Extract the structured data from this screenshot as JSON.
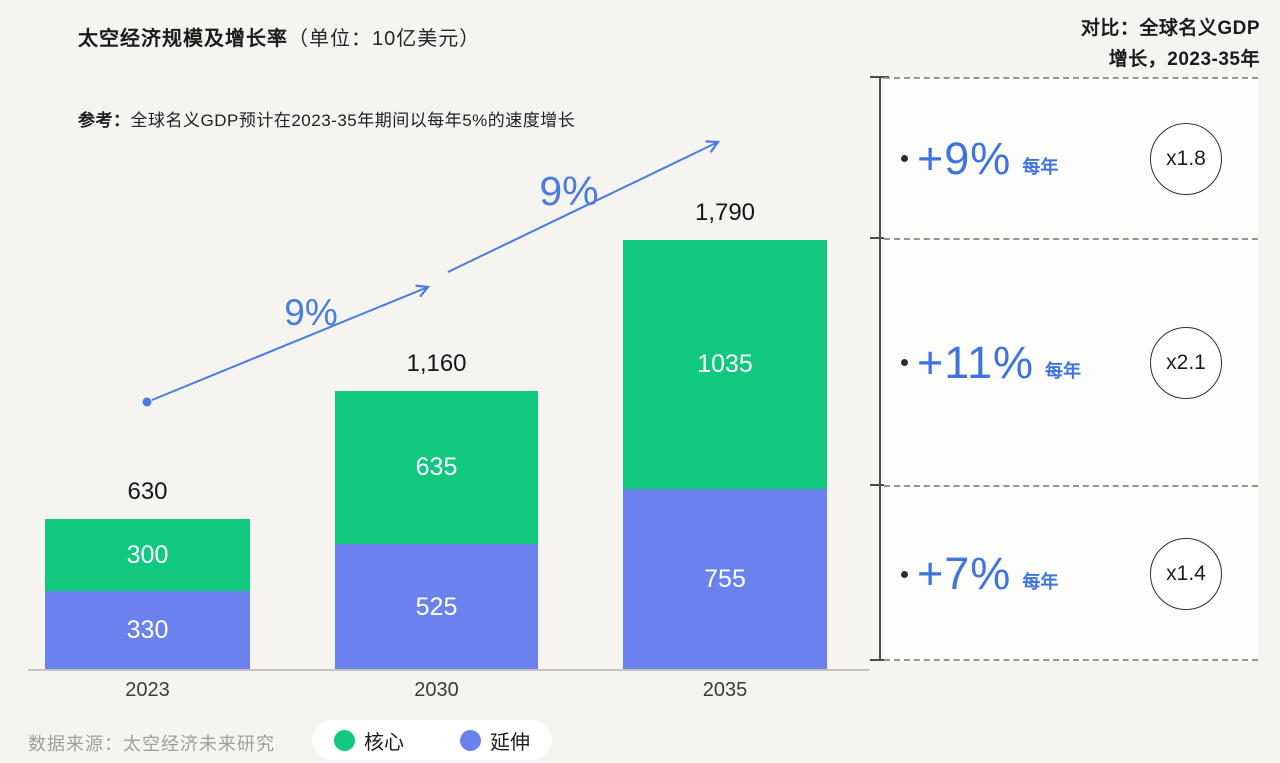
{
  "colors": {
    "background": "#f5f4f0",
    "accent_blue": "#4a7ce0",
    "core_green": "#10c97e",
    "extension_blue": "#6b82ee"
  },
  "header": {
    "title_main": "太空经济规模及增长率",
    "title_unit": "（单位：10亿美元）",
    "comparison_line1": "对比：全球名义GDP",
    "comparison_line2": "增长，2023-35年",
    "reference_label": "参考：",
    "reference_text": "全球名义GDP预计在2023-35年期间以每年5%的速度增长"
  },
  "chart_data": {
    "type": "bar",
    "stacked": true,
    "title": "太空经济规模及增长率（单位：10亿美元）",
    "unit": "10亿美元",
    "categories": [
      "2023",
      "2030",
      "2035"
    ],
    "series": [
      {
        "name": "延伸",
        "color": "#6b82ee",
        "values": [
          330,
          525,
          755
        ]
      },
      {
        "name": "核心",
        "color": "#10c97e",
        "values": [
          300,
          635,
          1035
        ]
      }
    ],
    "totals": [
      "630",
      "1,160",
      "1,790"
    ],
    "growth_labels": [
      "9%",
      "9%"
    ],
    "ylim": [
      0,
      1790
    ],
    "grid": false,
    "legend_position": "bottom"
  },
  "panel": {
    "rows": [
      {
        "rate": "+9%",
        "per": "每年",
        "multiple": "x1.8"
      },
      {
        "rate": "+11%",
        "per": "每年",
        "multiple": "x2.1"
      },
      {
        "rate": "+7%",
        "per": "每年",
        "multiple": "x1.4"
      }
    ]
  },
  "legend": [
    {
      "label": "核心",
      "color": "#10c97e"
    },
    {
      "label": "延伸",
      "color": "#6b82ee"
    }
  ],
  "footer": {
    "source": "数据来源：太空经济未来研究"
  }
}
